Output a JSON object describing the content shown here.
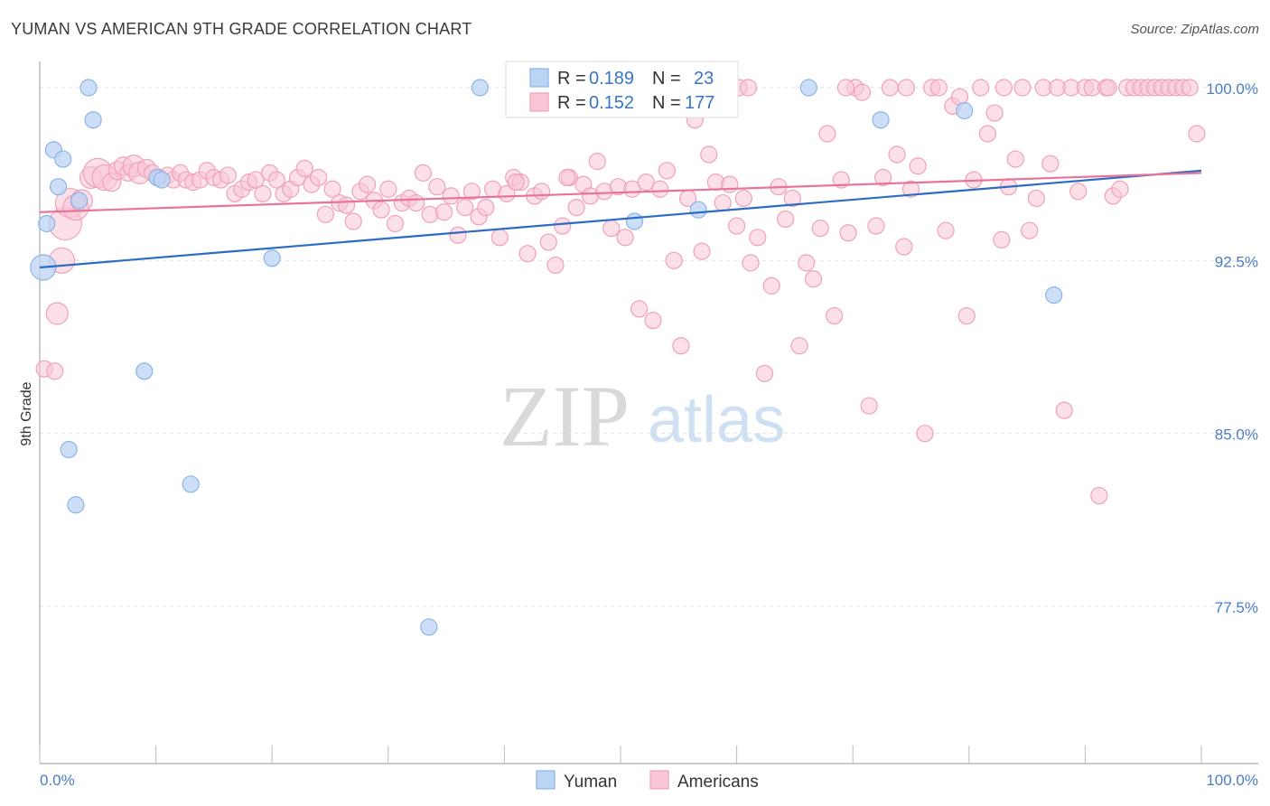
{
  "chart_data": {
    "type": "scatter",
    "title": "YUMAN VS AMERICAN 9TH GRADE CORRELATION CHART",
    "source": "Source: ZipAtlas.com",
    "xlabel": "",
    "ylabel": "9th Grade",
    "xlim": [
      0,
      100
    ],
    "ylim": [
      70.0,
      101.5
    ],
    "x_tick_labels": [
      "0.0%",
      "100.0%"
    ],
    "y_ticks": [
      {
        "value": 100.0,
        "label": "100.0%"
      },
      {
        "value": 92.5,
        "label": "92.5%"
      },
      {
        "value": 85.0,
        "label": "85.0%"
      },
      {
        "value": 77.5,
        "label": "77.5%"
      }
    ],
    "watermark": {
      "zip": "ZIP",
      "atlas": "atlas"
    },
    "legend": {
      "r_label": "R =",
      "n_label": "N =",
      "entries": [
        {
          "name": "Yuman",
          "r": "0.189",
          "n": "23"
        },
        {
          "name": "Americans",
          "r": "0.152",
          "n": "177"
        }
      ]
    },
    "series": [
      {
        "name": "Yuman",
        "color": "#8ab4e8",
        "fill": "#bcd4f4",
        "line_color": "#2d6cc4",
        "trend": {
          "x0": 0,
          "y0": 92.2,
          "x1": 100,
          "y1": 96.4
        },
        "points": [
          [
            0.3,
            92.2,
            14
          ],
          [
            0.6,
            94.1,
            9
          ],
          [
            1.2,
            97.3,
            9
          ],
          [
            1.6,
            95.7,
            9
          ],
          [
            2.0,
            96.9,
            9
          ],
          [
            2.5,
            84.3,
            9
          ],
          [
            3.1,
            81.9,
            9
          ],
          [
            3.4,
            95.1,
            9
          ],
          [
            4.2,
            100.0,
            9
          ],
          [
            4.6,
            98.6,
            9
          ],
          [
            9.0,
            87.7,
            9
          ],
          [
            10.1,
            96.1,
            9
          ],
          [
            10.5,
            96.0,
            9
          ],
          [
            13.0,
            82.8,
            9
          ],
          [
            20.0,
            92.6,
            9
          ],
          [
            33.5,
            76.6,
            9
          ],
          [
            37.9,
            100.0,
            9
          ],
          [
            51.2,
            94.2,
            9
          ],
          [
            56.7,
            94.7,
            9
          ],
          [
            66.2,
            100.0,
            9
          ],
          [
            72.4,
            98.6,
            9
          ],
          [
            79.6,
            99.0,
            9
          ],
          [
            87.3,
            91.0,
            9
          ]
        ]
      },
      {
        "name": "Americans",
        "color": "#f1a0b9",
        "fill": "#f8c6d5",
        "line_color": "#e8739a",
        "trend": {
          "x0": 0,
          "y0": 94.6,
          "x1": 100,
          "y1": 96.3
        },
        "points": [
          [
            0.4,
            87.8,
            9
          ],
          [
            1.3,
            87.7,
            9
          ],
          [
            1.5,
            90.2,
            12
          ],
          [
            1.9,
            92.5,
            14
          ],
          [
            2.2,
            94.1,
            18
          ],
          [
            2.6,
            95.0,
            16
          ],
          [
            3.1,
            94.8,
            14
          ],
          [
            3.6,
            95.1,
            12
          ],
          [
            4.4,
            96.1,
            12
          ],
          [
            5.0,
            96.3,
            16
          ],
          [
            5.6,
            96.1,
            14
          ],
          [
            6.2,
            95.9,
            10
          ],
          [
            6.7,
            96.4,
            10
          ],
          [
            7.2,
            96.6,
            10
          ],
          [
            7.6,
            96.3,
            9
          ],
          [
            8.1,
            96.6,
            12
          ],
          [
            8.6,
            96.3,
            12
          ],
          [
            9.2,
            96.5,
            10
          ],
          [
            9.7,
            96.3,
            9
          ],
          [
            10.3,
            96.1,
            9
          ],
          [
            11.0,
            96.2,
            9
          ],
          [
            11.5,
            96.0,
            9
          ],
          [
            12.1,
            96.3,
            9
          ],
          [
            12.6,
            96.0,
            9
          ],
          [
            13.2,
            95.9,
            9
          ],
          [
            13.8,
            96.0,
            9
          ],
          [
            14.4,
            96.4,
            9
          ],
          [
            15.0,
            96.1,
            9
          ],
          [
            15.6,
            96.0,
            9
          ],
          [
            16.2,
            96.2,
            9
          ],
          [
            16.8,
            95.4,
            9
          ],
          [
            17.4,
            95.6,
            9
          ],
          [
            18.0,
            95.9,
            9
          ],
          [
            18.6,
            96.0,
            9
          ],
          [
            19.2,
            95.4,
            9
          ],
          [
            19.8,
            96.3,
            9
          ],
          [
            20.4,
            96.0,
            9
          ],
          [
            21.0,
            95.4,
            9
          ],
          [
            21.6,
            95.6,
            9
          ],
          [
            22.2,
            96.1,
            9
          ],
          [
            22.8,
            96.5,
            9
          ],
          [
            23.4,
            95.8,
            9
          ],
          [
            24.0,
            96.1,
            9
          ],
          [
            24.6,
            94.5,
            9
          ],
          [
            25.2,
            95.6,
            9
          ],
          [
            25.8,
            95.0,
            9
          ],
          [
            26.4,
            94.9,
            9
          ],
          [
            27.0,
            94.2,
            9
          ],
          [
            27.6,
            95.5,
            9
          ],
          [
            28.2,
            95.8,
            9
          ],
          [
            28.8,
            95.1,
            9
          ],
          [
            29.4,
            94.7,
            9
          ],
          [
            30.0,
            95.6,
            9
          ],
          [
            30.6,
            94.1,
            9
          ],
          [
            31.2,
            95.0,
            9
          ],
          [
            31.8,
            95.2,
            9
          ],
          [
            32.4,
            95.0,
            9
          ],
          [
            33.0,
            96.3,
            9
          ],
          [
            33.6,
            94.5,
            9
          ],
          [
            34.2,
            95.7,
            9
          ],
          [
            34.8,
            94.6,
            9
          ],
          [
            35.4,
            95.3,
            9
          ],
          [
            36.0,
            93.6,
            9
          ],
          [
            36.6,
            94.8,
            9
          ],
          [
            37.2,
            95.5,
            9
          ],
          [
            37.8,
            94.4,
            9
          ],
          [
            38.4,
            94.8,
            9
          ],
          [
            39.0,
            95.6,
            9
          ],
          [
            39.6,
            93.5,
            9
          ],
          [
            40.2,
            95.4,
            9
          ],
          [
            40.8,
            96.1,
            9
          ],
          [
            41.4,
            95.9,
            9
          ],
          [
            42.0,
            92.8,
            9
          ],
          [
            42.6,
            95.3,
            9
          ],
          [
            43.2,
            95.5,
            9
          ],
          [
            43.8,
            93.3,
            9
          ],
          [
            44.4,
            92.3,
            9
          ],
          [
            45.0,
            94.0,
            9
          ],
          [
            45.6,
            96.1,
            9
          ],
          [
            46.2,
            94.8,
            9
          ],
          [
            46.8,
            95.8,
            9
          ],
          [
            47.4,
            95.3,
            9
          ],
          [
            48.0,
            96.8,
            9
          ],
          [
            48.6,
            95.5,
            9
          ],
          [
            49.2,
            93.9,
            9
          ],
          [
            49.8,
            95.7,
            9
          ],
          [
            50.4,
            93.5,
            9
          ],
          [
            51.0,
            95.6,
            9
          ],
          [
            51.6,
            90.4,
            9
          ],
          [
            52.2,
            95.9,
            9
          ],
          [
            52.8,
            89.9,
            9
          ],
          [
            53.4,
            95.6,
            9
          ],
          [
            54.0,
            96.4,
            9
          ],
          [
            54.6,
            92.5,
            9
          ],
          [
            55.2,
            88.8,
            9
          ],
          [
            55.8,
            95.2,
            9
          ],
          [
            56.4,
            98.6,
            9
          ],
          [
            57.0,
            92.9,
            9
          ],
          [
            57.6,
            97.1,
            9
          ],
          [
            58.2,
            95.9,
            9
          ],
          [
            58.8,
            95.0,
            9
          ],
          [
            59.4,
            95.8,
            9
          ],
          [
            60.0,
            94.0,
            9
          ],
          [
            60.6,
            95.2,
            9
          ],
          [
            61.2,
            92.4,
            9
          ],
          [
            61.8,
            93.5,
            9
          ],
          [
            62.4,
            87.6,
            9
          ],
          [
            63.0,
            91.4,
            9
          ],
          [
            63.6,
            95.7,
            9
          ],
          [
            64.2,
            94.3,
            9
          ],
          [
            64.8,
            95.2,
            9
          ],
          [
            65.4,
            88.8,
            9
          ],
          [
            66.0,
            92.4,
            9
          ],
          [
            66.6,
            91.7,
            9
          ],
          [
            67.2,
            93.9,
            9
          ],
          [
            67.8,
            98.0,
            9
          ],
          [
            68.4,
            90.1,
            9
          ],
          [
            69.0,
            96.0,
            9
          ],
          [
            69.6,
            93.7,
            9
          ],
          [
            70.2,
            100.0,
            9
          ],
          [
            70.8,
            99.8,
            9
          ],
          [
            71.4,
            86.2,
            9
          ],
          [
            72.0,
            94.0,
            9
          ],
          [
            72.6,
            96.1,
            9
          ],
          [
            73.2,
            100.0,
            9
          ],
          [
            73.8,
            97.1,
            9
          ],
          [
            74.4,
            93.1,
            9
          ],
          [
            75.0,
            95.6,
            9
          ],
          [
            75.6,
            96.6,
            9
          ],
          [
            76.2,
            85.0,
            9
          ],
          [
            76.8,
            100.0,
            9
          ],
          [
            77.4,
            100.0,
            9
          ],
          [
            78.0,
            93.8,
            9
          ],
          [
            78.6,
            99.2,
            9
          ],
          [
            79.2,
            99.6,
            9
          ],
          [
            79.8,
            90.1,
            9
          ],
          [
            80.4,
            96.0,
            9
          ],
          [
            81.0,
            100.0,
            9
          ],
          [
            81.6,
            98.0,
            9
          ],
          [
            82.2,
            98.9,
            9
          ],
          [
            82.8,
            93.4,
            9
          ],
          [
            83.4,
            95.7,
            9
          ],
          [
            84.0,
            96.9,
            9
          ],
          [
            84.6,
            100.0,
            9
          ],
          [
            85.2,
            93.8,
            9
          ],
          [
            85.8,
            95.2,
            9
          ],
          [
            86.4,
            100.0,
            9
          ],
          [
            87.0,
            96.7,
            9
          ],
          [
            87.6,
            100.0,
            9
          ],
          [
            88.2,
            86.0,
            9
          ],
          [
            88.8,
            100.0,
            9
          ],
          [
            89.4,
            95.5,
            9
          ],
          [
            90.0,
            100.0,
            9
          ],
          [
            90.6,
            100.0,
            9
          ],
          [
            91.2,
            82.3,
            9
          ],
          [
            91.8,
            100.0,
            9
          ],
          [
            92.4,
            95.3,
            9
          ],
          [
            93.0,
            95.6,
            9
          ],
          [
            93.6,
            100.0,
            9
          ],
          [
            94.2,
            100.0,
            9
          ],
          [
            94.8,
            100.0,
            9
          ],
          [
            95.4,
            100.0,
            9
          ],
          [
            96.0,
            100.0,
            9
          ],
          [
            96.6,
            100.0,
            9
          ],
          [
            97.2,
            100.0,
            9
          ],
          [
            97.8,
            100.0,
            9
          ],
          [
            98.4,
            100.0,
            9
          ],
          [
            99.0,
            100.0,
            9
          ],
          [
            99.6,
            98.0,
            9
          ],
          [
            60.2,
            100.0,
            9
          ],
          [
            61.0,
            100.0,
            9
          ],
          [
            69.4,
            100.0,
            9
          ],
          [
            74.6,
            100.0,
            9
          ],
          [
            83.0,
            100.0,
            9
          ],
          [
            92.0,
            100.0,
            9
          ],
          [
            45.4,
            96.1,
            9
          ],
          [
            41.0,
            95.9,
            9
          ]
        ]
      }
    ]
  }
}
